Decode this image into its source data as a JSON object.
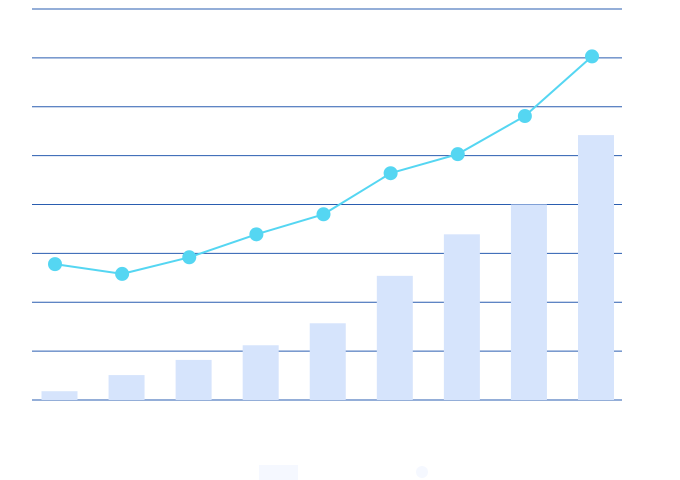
{
  "chart_data": {
    "type": "bar+line",
    "title": "",
    "xlabel": "",
    "ylabel": "",
    "categories": [
      "",
      "",
      "",
      "",
      "",
      "",
      "",
      "",
      ""
    ],
    "ylim": [
      0,
      8
    ],
    "grid": true,
    "gridlines": [
      0,
      1,
      2,
      3,
      4,
      5,
      6,
      7,
      8
    ],
    "legend": "bottom",
    "series": [
      {
        "type": "bar",
        "color": "#d6e4fc",
        "values": [
          0.18,
          0.51,
          0.82,
          1.12,
          1.57,
          2.54,
          3.39,
          4.0,
          5.42
        ]
      },
      {
        "type": "line",
        "color": "#55d6f2",
        "values": [
          2.78,
          2.58,
          2.92,
          3.39,
          3.8,
          4.64,
          5.03,
          5.81,
          7.03
        ]
      }
    ],
    "colors": {
      "grid": "#2a5db0",
      "legend_swatch": "#f5f8ff"
    }
  }
}
